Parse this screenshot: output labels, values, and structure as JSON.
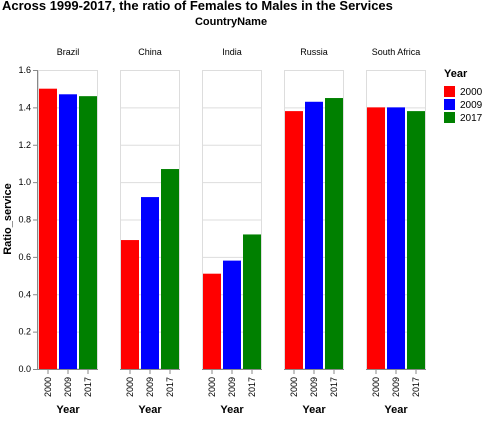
{
  "chart_data": {
    "type": "bar",
    "title": "Across 1999-2017, the ratio of Females to Males in the Services",
    "facet_title": "CountryName",
    "ylabel": "Ratio_service",
    "xlabel": "Year",
    "ylim": [
      0,
      1.6
    ],
    "yticks": [
      "0.0",
      "0.2",
      "0.4",
      "0.6",
      "0.8",
      "1.0",
      "1.2",
      "1.4",
      "1.6"
    ],
    "grid": true,
    "legend": {
      "title": "Year",
      "placement": "right",
      "items": [
        {
          "label": "2000",
          "color": "#ff0000"
        },
        {
          "label": "2009",
          "color": "#0000ff"
        },
        {
          "label": "2017",
          "color": "#008000"
        }
      ]
    },
    "categories": [
      "2000",
      "2009",
      "2017"
    ],
    "panels": [
      {
        "name": "Brazil",
        "values": [
          1.5,
          1.47,
          1.46
        ]
      },
      {
        "name": "China",
        "values": [
          0.69,
          0.92,
          1.07
        ]
      },
      {
        "name": "India",
        "values": [
          0.51,
          0.58,
          0.72
        ]
      },
      {
        "name": "Russia",
        "values": [
          1.38,
          1.43,
          1.45
        ]
      },
      {
        "name": "South Africa",
        "values": [
          1.4,
          1.4,
          1.38
        ]
      }
    ]
  }
}
